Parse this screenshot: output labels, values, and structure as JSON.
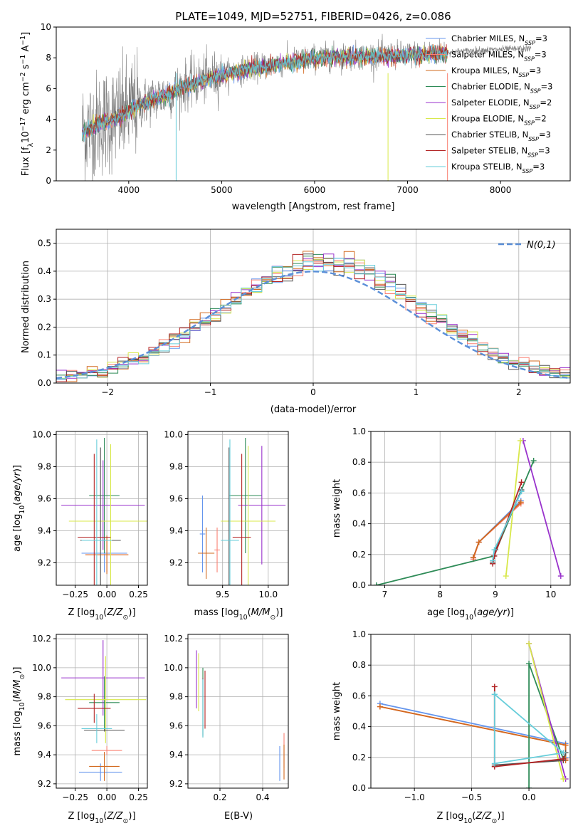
{
  "figure_title": "PLATE=1049, MJD=52751, FIBERID=0426, z=0.086",
  "colors": {
    "Chabrier MILES": "#6495ed",
    "Salpeter MILES": "#fa8072",
    "Kroupa MILES": "#d2691e",
    "Chabrier ELODIE": "#2e8b57",
    "Salpeter ELODIE": "#9932cc",
    "Kroupa ELODIE": "#d8e84a",
    "Chabrier STELIB": "#555555",
    "Salpeter STELIB": "#b22222",
    "Kroupa STELIB": "#66cdda",
    "data": "#808080",
    "gauss": "#5b8fd8"
  },
  "chart_data": [
    {
      "id": "spectrum",
      "type": "line",
      "title": "PLATE=1049, MJD=52751, FIBERID=0426, z=0.086",
      "xlabel": "wavelength [Angstrom, rest frame]",
      "ylabel": "Flux [f_λ 10^-17 erg cm^-2 s^-1 A^-1]",
      "xlim": [
        3220,
        8750
      ],
      "ylim": [
        0,
        10
      ],
      "xticks": [
        4000,
        5000,
        6000,
        7000,
        8000
      ],
      "yticks": [
        0,
        2,
        4,
        6,
        8,
        10
      ],
      "legend_position": "right",
      "legend": [
        {
          "label": "Chabrier MILES, N_SSP=3"
        },
        {
          "label": "Salpeter MILES, N_SSP=3"
        },
        {
          "label": "Kroupa MILES, N_SSP=3"
        },
        {
          "label": "Chabrier ELODIE, N_SSP=3"
        },
        {
          "label": "Salpeter ELODIE, N_SSP=2"
        },
        {
          "label": "Kroupa ELODIE, N_SSP=2"
        },
        {
          "label": "Chabrier STELIB, N_SSP=3"
        },
        {
          "label": "Salpeter STELIB, N_SSP=3"
        },
        {
          "label": "Kroupa STELIB, N_SSP=3"
        }
      ],
      "data_range": [
        3500,
        8330
      ],
      "model_range": [
        3500,
        7430
      ],
      "continuum": [
        [
          3500,
          3.2
        ],
        [
          3700,
          3.8
        ],
        [
          3900,
          4.2
        ],
        [
          4000,
          4.6
        ],
        [
          4200,
          5.2
        ],
        [
          4400,
          5.6
        ],
        [
          4600,
          6.2
        ],
        [
          4800,
          6.6
        ],
        [
          5000,
          6.9
        ],
        [
          5200,
          7.2
        ],
        [
          5500,
          7.5
        ],
        [
          5800,
          7.8
        ],
        [
          6000,
          8.0
        ],
        [
          6300,
          8.1
        ],
        [
          6600,
          8.15
        ],
        [
          7000,
          8.2
        ],
        [
          7400,
          8.35
        ],
        [
          7800,
          8.5
        ],
        [
          8330,
          8.6
        ]
      ]
    },
    {
      "id": "residuals",
      "type": "area",
      "xlabel": "(data-model)/error",
      "ylabel": "Normed distribution",
      "xlim": [
        -2.5,
        2.5
      ],
      "ylim": [
        0,
        0.55
      ],
      "xticks": [
        -2,
        -1,
        0,
        1,
        2
      ],
      "yticks": [
        0.0,
        0.1,
        0.2,
        0.3,
        0.4,
        0.5
      ],
      "legend_position": "top-right",
      "gauss_label": "N(0,1)"
    },
    {
      "id": "age_vs_Z",
      "type": "scatter",
      "xlabel": "Z [log10(Z/Z⊙)]",
      "ylabel": "age [log10(age/yr)]",
      "xlim": [
        -0.4,
        0.32
      ],
      "ylim": [
        9.06,
        10.02
      ],
      "xticks": [
        -0.25,
        0.0,
        0.25
      ],
      "yticks": [
        9.2,
        9.4,
        9.6,
        9.8,
        10.0
      ],
      "points": [
        {
          "model": "Chabrier MILES",
          "x": -0.02,
          "xerr": 0.18,
          "y": 9.26,
          "yerr": 0.12
        },
        {
          "model": "Salpeter MILES",
          "x": 0.0,
          "xerr": 0.17,
          "y": 9.25,
          "yerr": 0.11
        },
        {
          "model": "Kroupa MILES",
          "x": 0.0,
          "xerr": 0.17,
          "y": 9.25,
          "yerr": 0.12
        },
        {
          "model": "Chabrier ELODIE",
          "x": -0.02,
          "xerr": 0.12,
          "y": 9.62,
          "yerr": 0.36
        },
        {
          "model": "Salpeter ELODIE",
          "x": -0.03,
          "xerr": 0.33,
          "y": 9.56,
          "yerr": 0.28
        },
        {
          "model": "Kroupa ELODIE",
          "x": 0.03,
          "xerr": 0.33,
          "y": 9.46,
          "yerr": 0.48
        },
        {
          "model": "Chabrier STELIB",
          "x": -0.05,
          "xerr": 0.16,
          "y": 9.34,
          "yerr": 0.58
        },
        {
          "model": "Salpeter STELIB",
          "x": -0.1,
          "xerr": 0.13,
          "y": 9.36,
          "yerr": 0.52
        },
        {
          "model": "Kroupa STELIB",
          "x": -0.08,
          "xerr": 0.12,
          "y": 9.34,
          "yerr": 0.63
        }
      ]
    },
    {
      "id": "age_vs_mass",
      "type": "scatter",
      "xlabel": "mass [log10(M/M⊙)]",
      "ylabel": "",
      "xlim": [
        9.12,
        10.22
      ],
      "ylim": [
        9.06,
        10.02
      ],
      "xticks": [
        9.5,
        10.0
      ],
      "yticks": [
        9.2,
        9.4,
        9.6,
        9.8,
        10.0
      ],
      "points": [
        {
          "model": "Chabrier MILES",
          "x": 9.28,
          "xerr": 0.03,
          "y": 9.38,
          "yerr": 0.24
        },
        {
          "model": "Salpeter MILES",
          "x": 9.44,
          "xerr": 0.03,
          "y": 9.28,
          "yerr": 0.14
        },
        {
          "model": "Kroupa MILES",
          "x": 9.32,
          "xerr": 0.09,
          "y": 9.26,
          "yerr": 0.16
        },
        {
          "model": "Chabrier ELODIE",
          "x": 9.75,
          "xerr": 0.18,
          "y": 9.62,
          "yerr": 0.36
        },
        {
          "model": "Salpeter ELODIE",
          "x": 9.93,
          "xerr": 0.26,
          "y": 9.56,
          "yerr": 0.37
        },
        {
          "model": "Kroupa ELODIE",
          "x": 9.78,
          "xerr": 0.3,
          "y": 9.46,
          "yerr": 0.47
        },
        {
          "model": "Chabrier STELIB",
          "x": 9.57,
          "xerr": 0.01,
          "y": 9.34,
          "yerr": 0.58
        },
        {
          "model": "Salpeter STELIB",
          "x": 9.71,
          "xerr": 0.1,
          "y": 9.36,
          "yerr": 0.52
        },
        {
          "model": "Kroupa STELIB",
          "x": 9.58,
          "xerr": 0.1,
          "y": 9.34,
          "yerr": 0.63
        }
      ]
    },
    {
      "id": "mw_vs_age",
      "type": "line",
      "xlabel": "age [log10(age/yr)]",
      "ylabel": "mass weight",
      "xlim": [
        6.75,
        10.35
      ],
      "ylim": [
        0,
        1
      ],
      "xticks": [
        7,
        8,
        9,
        10
      ],
      "yticks": [
        0.0,
        0.2,
        0.4,
        0.6,
        0.8,
        1.0
      ],
      "series": [
        {
          "model": "Chabrier MILES",
          "x": [
            8.6,
            8.7,
            9.46
          ],
          "y": [
            0.18,
            0.28,
            0.55
          ]
        },
        {
          "model": "Salpeter MILES",
          "x": [
            8.6,
            8.7,
            9.46
          ],
          "y": [
            0.17,
            0.28,
            0.53
          ]
        },
        {
          "model": "Kroupa MILES",
          "x": [
            8.6,
            8.7,
            9.46
          ],
          "y": [
            0.18,
            0.28,
            0.54
          ]
        },
        {
          "model": "Chabrier ELODIE",
          "x": [
            6.85,
            8.97,
            9.69
          ],
          "y": [
            0.0,
            0.19,
            0.81
          ]
        },
        {
          "model": "Salpeter ELODIE",
          "x": [
            10.18,
            9.5
          ],
          "y": [
            0.06,
            0.94
          ]
        },
        {
          "model": "Kroupa ELODIE",
          "x": [
            9.19,
            9.45
          ],
          "y": [
            0.06,
            0.94
          ]
        },
        {
          "model": "Chabrier STELIB",
          "x": [
            8.95,
            9.0,
            9.47
          ],
          "y": [
            0.15,
            0.23,
            0.62
          ]
        },
        {
          "model": "Salpeter STELIB",
          "x": [
            8.95,
            8.98,
            9.47
          ],
          "y": [
            0.14,
            0.19,
            0.67
          ]
        },
        {
          "model": "Kroupa STELIB",
          "x": [
            8.95,
            8.98,
            9.47
          ],
          "y": [
            0.16,
            0.23,
            0.61
          ]
        }
      ]
    },
    {
      "id": "mass_vs_Z",
      "type": "scatter",
      "xlabel": "Z [log10(Z/Z⊙)]",
      "ylabel": "mass [log10(M/M⊙)]",
      "xlim": [
        -0.4,
        0.32
      ],
      "ylim": [
        9.17,
        10.23
      ],
      "xticks": [
        -0.25,
        0.0,
        0.25
      ],
      "yticks": [
        9.2,
        9.4,
        9.6,
        9.8,
        10.0,
        10.2
      ],
      "points": [
        {
          "model": "Chabrier MILES",
          "x": -0.05,
          "xerr": 0.17,
          "y": 9.28,
          "yerr": 0.06
        },
        {
          "model": "Salpeter MILES",
          "x": 0.0,
          "xerr": 0.12,
          "y": 9.43,
          "yerr": 0.03
        },
        {
          "model": "Kroupa MILES",
          "x": -0.02,
          "xerr": 0.12,
          "y": 9.32,
          "yerr": 0.1
        },
        {
          "model": "Chabrier ELODIE",
          "x": -0.02,
          "xerr": 0.12,
          "y": 9.76,
          "yerr": 0.18
        },
        {
          "model": "Salpeter ELODIE",
          "x": -0.03,
          "xerr": 0.33,
          "y": 9.93,
          "yerr": 0.26
        },
        {
          "model": "Kroupa ELODIE",
          "x": -0.01,
          "xerr": 0.32,
          "y": 9.78,
          "yerr": 0.3
        },
        {
          "model": "Chabrier STELIB",
          "x": -0.02,
          "xerr": 0.16,
          "y": 9.57,
          "yerr": 0.01
        },
        {
          "model": "Salpeter STELIB",
          "x": -0.1,
          "xerr": 0.13,
          "y": 9.72,
          "yerr": 0.1
        },
        {
          "model": "Kroupa STELIB",
          "x": -0.08,
          "xerr": 0.12,
          "y": 9.58,
          "yerr": 0.1
        }
      ]
    },
    {
      "id": "mass_vs_ebv",
      "type": "scatter",
      "xlabel": "E(B-V)",
      "ylabel": "",
      "xlim": [
        0.05,
        0.52
      ],
      "ylim": [
        9.17,
        10.23
      ],
      "xticks": [
        0.2,
        0.4
      ],
      "yticks": [
        9.2,
        9.4,
        9.6,
        9.8,
        10.0,
        10.2
      ],
      "points": [
        {
          "model": "Chabrier MILES",
          "x": 0.48,
          "y": 9.34,
          "yerr": 0.12
        },
        {
          "model": "Salpeter MILES",
          "x": 0.5,
          "y": 9.43,
          "yerr": 0.12
        },
        {
          "model": "Kroupa MILES",
          "x": 0.5,
          "y": 9.35,
          "yerr": 0.12
        },
        {
          "model": "Chabrier ELODIE",
          "x": 0.12,
          "y": 9.76,
          "yerr": 0.24
        },
        {
          "model": "Salpeter ELODIE",
          "x": 0.09,
          "y": 9.92,
          "yerr": 0.2
        },
        {
          "model": "Kroupa ELODIE",
          "x": 0.1,
          "y": 9.9,
          "yerr": 0.2
        },
        {
          "model": "Chabrier STELIB",
          "x": 0.12,
          "y": 9.73,
          "yerr": 0.2
        },
        {
          "model": "Salpeter STELIB",
          "x": 0.13,
          "y": 9.78,
          "yerr": 0.2
        },
        {
          "model": "Kroupa STELIB",
          "x": 0.12,
          "y": 9.72,
          "yerr": 0.2
        }
      ]
    },
    {
      "id": "mw_vs_Z",
      "type": "line",
      "xlabel": "Z [log10(Z/Z⊙)]",
      "ylabel": "mass weight",
      "xlim": [
        -1.38,
        0.36
      ],
      "ylim": [
        0,
        1
      ],
      "xticks": [
        -1.0,
        -0.5,
        0.0
      ],
      "yticks": [
        0.0,
        0.2,
        0.4,
        0.6,
        0.8,
        1.0
      ],
      "series": [
        {
          "model": "Chabrier MILES",
          "x": [
            -1.3,
            0.32,
            0.32
          ],
          "y": [
            0.55,
            0.29,
            0.2
          ]
        },
        {
          "model": "Salpeter MILES",
          "x": [
            -1.3,
            0.32,
            0.32
          ],
          "y": [
            0.53,
            0.28,
            0.19
          ]
        },
        {
          "model": "Kroupa MILES",
          "x": [
            -1.3,
            0.32,
            0.32
          ],
          "y": [
            0.53,
            0.28,
            0.18
          ]
        },
        {
          "model": "Chabrier ELODIE",
          "x": [
            0.0,
            0.0,
            0.3
          ],
          "y": [
            0.0,
            0.81,
            0.19
          ]
        },
        {
          "model": "Salpeter ELODIE",
          "x": [
            0.0,
            0.32
          ],
          "y": [
            0.94,
            0.06
          ]
        },
        {
          "model": "Kroupa ELODIE",
          "x": [
            0.0,
            0.3
          ],
          "y": [
            0.94,
            0.06
          ]
        },
        {
          "model": "Chabrier STELIB",
          "x": [
            -0.3,
            0.3,
            0.32
          ],
          "y": [
            0.15,
            0.18,
            0.23
          ]
        },
        {
          "model": "Salpeter STELIB",
          "x": [
            -0.3,
            -0.3,
            0.3
          ],
          "y": [
            0.66,
            0.14,
            0.19
          ]
        },
        {
          "model": "Kroupa STELIB",
          "x": [
            -0.3,
            -0.3,
            0.3,
            -0.3
          ],
          "y": [
            0.61,
            0.16,
            0.23,
            0.61
          ]
        }
      ]
    }
  ]
}
